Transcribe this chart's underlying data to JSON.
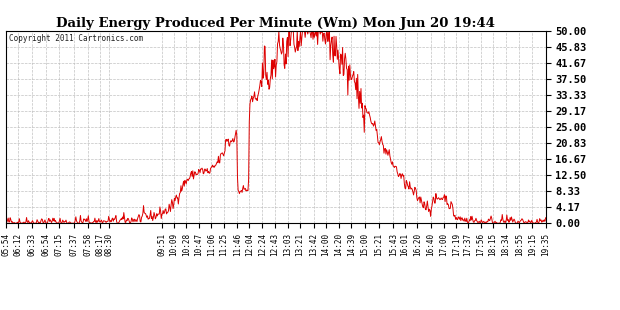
{
  "title": "Daily Energy Produced Per Minute (Wm) Mon Jun 20 19:44",
  "copyright": "Copyright 2011 Cartronics.com",
  "bg_color": "#ffffff",
  "plot_bg_color": "#ffffff",
  "line_color": "#dd0000",
  "grid_color": "#bbbbbb",
  "yticks": [
    0.0,
    4.17,
    8.33,
    12.5,
    16.67,
    20.83,
    25.0,
    29.17,
    33.33,
    37.5,
    41.67,
    45.83,
    50.0
  ],
  "ytick_labels": [
    "0.00",
    "4.17",
    "8.33",
    "12.50",
    "16.67",
    "20.83",
    "25.00",
    "29.17",
    "33.33",
    "37.50",
    "41.67",
    "45.83",
    "50.00"
  ],
  "xtick_labels": [
    "05:54",
    "06:12",
    "06:33",
    "06:54",
    "07:15",
    "07:37",
    "07:58",
    "08:17",
    "08:30",
    "09:51",
    "10:09",
    "10:28",
    "10:47",
    "11:06",
    "11:25",
    "11:46",
    "12:04",
    "12:24",
    "12:43",
    "13:03",
    "13:21",
    "13:42",
    "14:00",
    "14:20",
    "14:39",
    "15:00",
    "15:21",
    "15:43",
    "16:01",
    "16:20",
    "16:40",
    "17:00",
    "17:19",
    "17:37",
    "17:56",
    "18:15",
    "18:34",
    "18:55",
    "19:15",
    "19:35"
  ],
  "ymin": 0.0,
  "ymax": 50.0,
  "start_time": "05:54",
  "end_time": "19:35"
}
